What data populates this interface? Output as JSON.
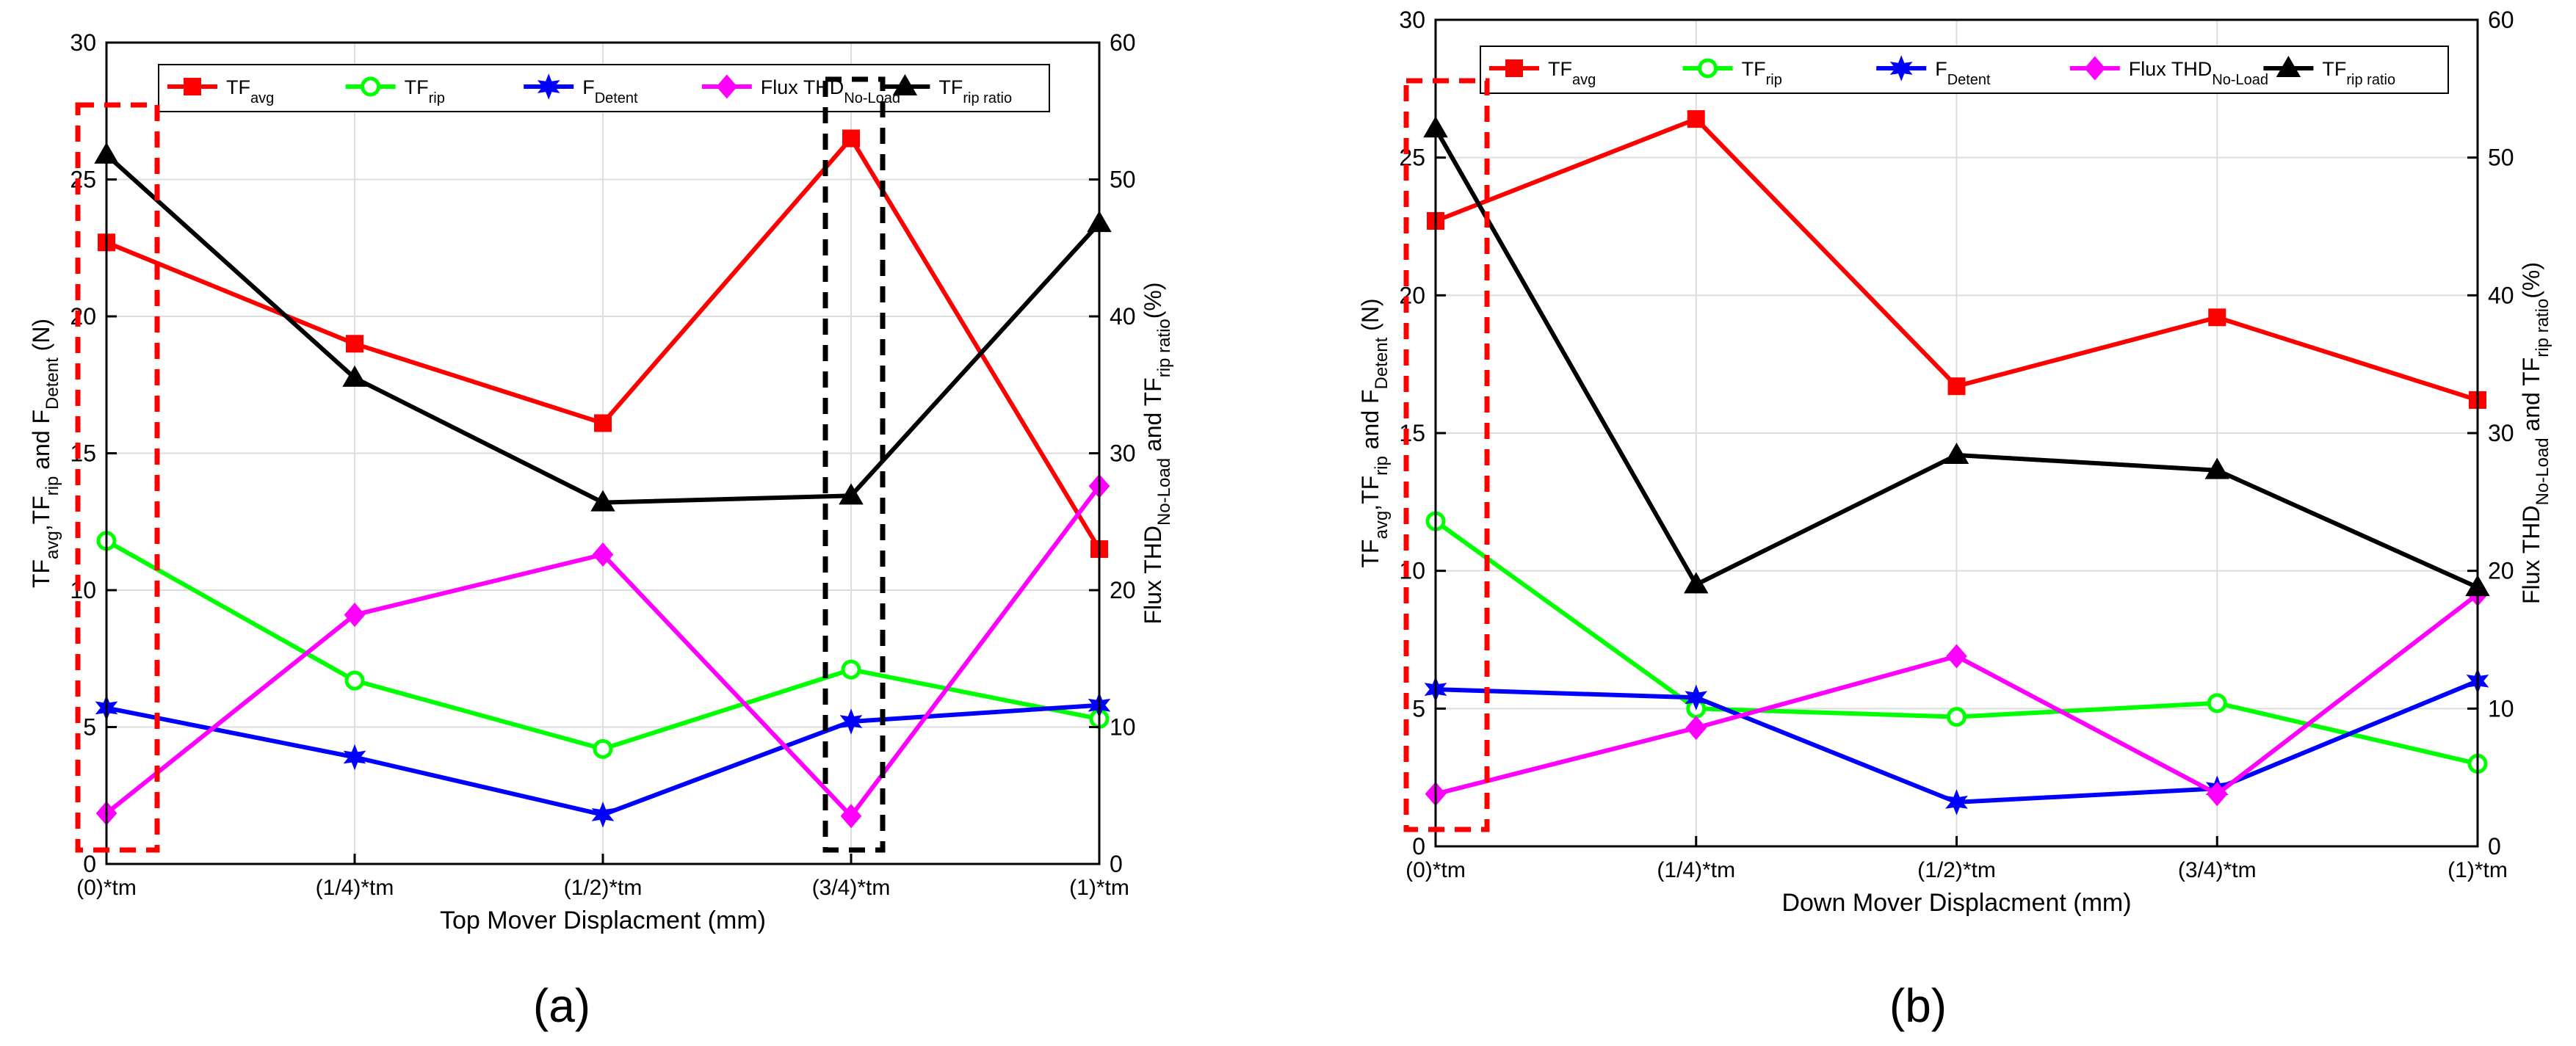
{
  "figure": {
    "caption_a": "(a)",
    "caption_b": "(b)"
  },
  "chart_data": [
    {
      "type": "line",
      "panel": "a",
      "categories": [
        "(0)*tm",
        "(1/4)*tm",
        "(1/2)*tm",
        "(3/4)*tm",
        "(1)*tm"
      ],
      "xlabel": "Top Mover Displacment (mm)",
      "ylabel_left": [
        {
          "t": "TF",
          "s": "avg"
        },
        {
          "t": ",TF",
          "s": "rip"
        },
        {
          "t": " and F",
          "s": "Detent"
        },
        {
          "t": " (N)",
          "s": ""
        }
      ],
      "ylabel_right": [
        {
          "t": "Flux THD",
          "s": "No-Load"
        },
        {
          "t": " and TF",
          "s": "rip ratio"
        },
        {
          "t": "(%)",
          "s": ""
        }
      ],
      "ylim_left": [
        0,
        30
      ],
      "yticks_left": [
        "0",
        "5",
        "10",
        "15",
        "20",
        "25",
        "30"
      ],
      "ylim_right": [
        0,
        60
      ],
      "yticks_right": [
        "0",
        "10",
        "20",
        "30",
        "40",
        "50",
        "60"
      ],
      "grid": true,
      "legend_position": "top",
      "series": [
        {
          "key": "tfavg",
          "name": "TF",
          "sub": "avg",
          "color": "#ff0000",
          "marker": "square",
          "axis": "left",
          "values": [
            22.7,
            19.0,
            16.1,
            26.5,
            11.5
          ]
        },
        {
          "key": "tfrip",
          "name": "TF",
          "sub": "rip",
          "color": "#00ff00",
          "marker": "circle",
          "axis": "left",
          "values": [
            11.8,
            6.7,
            4.2,
            7.1,
            5.3
          ]
        },
        {
          "key": "fdet",
          "name": "F",
          "sub": "Detent",
          "color": "#0000ff",
          "marker": "star",
          "axis": "left",
          "values": [
            5.7,
            3.9,
            1.8,
            5.2,
            5.8
          ]
        },
        {
          "key": "thd",
          "name": "Flux THD",
          "sub": "No-Load",
          "color": "#ff00ff",
          "marker": "diamond",
          "axis": "right",
          "values": [
            3.7,
            18.2,
            22.6,
            3.5,
            27.6
          ]
        },
        {
          "key": "ratio",
          "name": "TF",
          "sub": "rip ratio",
          "color": "#000000",
          "marker": "triangle",
          "axis": "right",
          "values": [
            51.8,
            35.5,
            26.4,
            26.9,
            46.8
          ]
        }
      ]
    },
    {
      "type": "line",
      "panel": "b",
      "categories": [
        "(0)*tm",
        "(1/4)*tm",
        "(1/2)*tm",
        "(3/4)*tm",
        "(1)*tm"
      ],
      "xlabel": "Down Mover Displacment (mm)",
      "ylabel_left": [
        {
          "t": "TF",
          "s": "avg"
        },
        {
          "t": ",TF",
          "s": "rip"
        },
        {
          "t": " and F",
          "s": "Detent"
        },
        {
          "t": " (N)",
          "s": ""
        }
      ],
      "ylabel_right": [
        {
          "t": "Flux THD",
          "s": "No-Load"
        },
        {
          "t": " and TF",
          "s": "rip ratio"
        },
        {
          "t": "(%)",
          "s": ""
        }
      ],
      "ylim_left": [
        0,
        30
      ],
      "yticks_left": [
        "0",
        "5",
        "10",
        "15",
        "20",
        "25",
        "30"
      ],
      "ylim_right": [
        0,
        60
      ],
      "yticks_right": [
        "0",
        "10",
        "20",
        "30",
        "40",
        "50",
        "60"
      ],
      "grid": true,
      "legend_position": "top",
      "series": [
        {
          "key": "tfavg",
          "name": "TF",
          "sub": "avg",
          "color": "#ff0000",
          "marker": "square",
          "axis": "left",
          "values": [
            22.7,
            26.4,
            16.7,
            19.2,
            16.2
          ]
        },
        {
          "key": "tfrip",
          "name": "TF",
          "sub": "rip",
          "color": "#00ff00",
          "marker": "circle",
          "axis": "left",
          "values": [
            11.8,
            5.0,
            4.7,
            5.2,
            3.0
          ]
        },
        {
          "key": "fdet",
          "name": "F",
          "sub": "Detent",
          "color": "#0000ff",
          "marker": "star",
          "axis": "left",
          "values": [
            5.7,
            5.4,
            1.6,
            2.1,
            6.0
          ]
        },
        {
          "key": "thd",
          "name": "Flux THD",
          "sub": "No-Load",
          "color": "#ff00ff",
          "marker": "diamond",
          "axis": "right",
          "values": [
            3.8,
            8.6,
            13.8,
            3.8,
            18.3
          ]
        },
        {
          "key": "ratio",
          "name": "TF",
          "sub": "rip ratio",
          "color": "#000000",
          "marker": "triangle",
          "axis": "right",
          "values": [
            52.1,
            19.0,
            28.4,
            27.3,
            18.8
          ]
        }
      ]
    }
  ]
}
